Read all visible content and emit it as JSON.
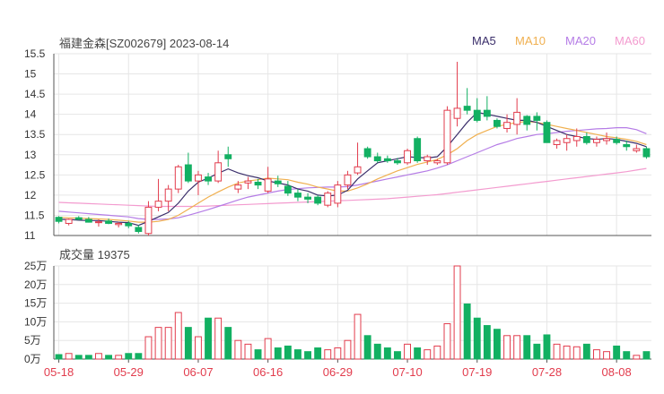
{
  "header": {
    "stock": "福建金森[SZ002679]",
    "date": "2023-08-14"
  },
  "legend": [
    {
      "name": "MA5",
      "color": "#3b2f6b"
    },
    {
      "name": "MA10",
      "color": "#f0b050"
    },
    {
      "name": "MA20",
      "color": "#b57ce6"
    },
    {
      "name": "MA60",
      "color": "#f39bcf"
    }
  ],
  "volume_header": {
    "label": "成交量",
    "value": "19375"
  },
  "colors": {
    "up": "#e23c4d",
    "down": "#12b062",
    "grid": "#e6e6e6",
    "axis": "#555555",
    "date_label": "#e23c4d"
  },
  "chart_data": [
    {
      "type": "candlestick",
      "title": "福建金森[SZ002679] 2023-08-14",
      "ylim": [
        11,
        15.5
      ],
      "y_ticks": [
        "15.5",
        "15",
        "14.5",
        "14",
        "13.5",
        "13",
        "12.5",
        "12",
        "11.5",
        "11"
      ],
      "x_tick_labels": [
        {
          "label": "05-18",
          "index": 0
        },
        {
          "label": "05-29",
          "index": 7
        },
        {
          "label": "06-07",
          "index": 14
        },
        {
          "label": "06-16",
          "index": 21
        },
        {
          "label": "06-29",
          "index": 28
        },
        {
          "label": "07-10",
          "index": 35
        },
        {
          "label": "07-19",
          "index": 42
        },
        {
          "label": "07-28",
          "index": 49
        },
        {
          "label": "08-08",
          "index": 56
        }
      ],
      "ohlc": [
        [
          11.45,
          11.48,
          11.3,
          11.35
        ],
        [
          11.3,
          11.42,
          11.25,
          11.4
        ],
        [
          11.44,
          11.48,
          11.38,
          11.4
        ],
        [
          11.4,
          11.46,
          11.32,
          11.33
        ],
        [
          11.32,
          11.4,
          11.22,
          11.34
        ],
        [
          11.36,
          11.42,
          11.28,
          11.3
        ],
        [
          11.27,
          11.33,
          11.2,
          11.3
        ],
        [
          11.3,
          11.36,
          11.18,
          11.24
        ],
        [
          11.2,
          11.26,
          11.05,
          11.1
        ],
        [
          11.05,
          11.85,
          11.0,
          11.7
        ],
        [
          11.7,
          12.4,
          11.6,
          11.85
        ],
        [
          11.85,
          12.25,
          11.6,
          12.15
        ],
        [
          12.15,
          12.75,
          12.05,
          12.7
        ],
        [
          12.75,
          13.05,
          12.3,
          12.35
        ],
        [
          12.35,
          12.6,
          12.0,
          12.5
        ],
        [
          12.45,
          12.55,
          12.25,
          12.35
        ],
        [
          12.35,
          13.1,
          12.3,
          12.8
        ],
        [
          13.0,
          13.2,
          12.7,
          12.9
        ],
        [
          12.15,
          12.35,
          12.05,
          12.25
        ],
        [
          12.3,
          12.45,
          12.15,
          12.35
        ],
        [
          12.32,
          12.4,
          12.15,
          12.25
        ],
        [
          12.1,
          12.7,
          12.05,
          12.4
        ],
        [
          12.35,
          12.48,
          12.2,
          12.28
        ],
        [
          12.22,
          12.35,
          11.98,
          12.05
        ],
        [
          12.05,
          12.15,
          11.85,
          11.95
        ],
        [
          11.95,
          12.05,
          11.8,
          11.9
        ],
        [
          11.95,
          12.0,
          11.75,
          11.8
        ],
        [
          11.75,
          12.1,
          11.7,
          12.05
        ],
        [
          11.8,
          12.35,
          11.7,
          12.25
        ],
        [
          12.25,
          12.6,
          12.15,
          12.5
        ],
        [
          12.55,
          13.3,
          12.5,
          12.7
        ],
        [
          13.15,
          13.2,
          12.9,
          12.95
        ],
        [
          12.95,
          13.05,
          12.8,
          12.85
        ],
        [
          12.9,
          12.98,
          12.8,
          12.85
        ],
        [
          12.85,
          12.92,
          12.75,
          12.8
        ],
        [
          12.8,
          13.15,
          12.75,
          13.1
        ],
        [
          13.4,
          13.45,
          12.8,
          12.85
        ],
        [
          12.85,
          13.0,
          12.75,
          12.95
        ],
        [
          12.8,
          12.9,
          12.75,
          12.85
        ],
        [
          12.8,
          14.2,
          12.75,
          14.1
        ],
        [
          13.9,
          15.3,
          13.7,
          14.15
        ],
        [
          14.2,
          14.65,
          14.0,
          14.1
        ],
        [
          14.1,
          14.4,
          13.8,
          13.85
        ],
        [
          14.1,
          14.45,
          13.85,
          13.95
        ],
        [
          13.85,
          13.9,
          13.65,
          13.7
        ],
        [
          13.65,
          14.0,
          13.55,
          13.8
        ],
        [
          13.75,
          14.4,
          13.5,
          14.05
        ],
        [
          13.95,
          13.98,
          13.6,
          13.75
        ],
        [
          13.95,
          14.05,
          13.6,
          13.85
        ],
        [
          13.8,
          13.85,
          13.3,
          13.3
        ],
        [
          13.25,
          13.4,
          13.15,
          13.35
        ],
        [
          13.3,
          13.5,
          13.1,
          13.4
        ],
        [
          13.35,
          13.65,
          13.2,
          13.45
        ],
        [
          13.45,
          13.55,
          13.25,
          13.3
        ],
        [
          13.3,
          13.45,
          13.2,
          13.38
        ],
        [
          13.35,
          13.55,
          13.25,
          13.4
        ],
        [
          13.38,
          13.45,
          13.25,
          13.3
        ],
        [
          13.25,
          13.35,
          13.1,
          13.2
        ],
        [
          13.1,
          13.25,
          13.05,
          13.15
        ],
        [
          13.15,
          13.2,
          12.9,
          12.95
        ]
      ],
      "series": [
        {
          "name": "MA5",
          "values": [
            11.4,
            11.4,
            11.38,
            11.37,
            11.37,
            11.35,
            11.33,
            11.32,
            11.25,
            11.35,
            11.46,
            11.57,
            11.8,
            12.1,
            12.32,
            12.42,
            12.54,
            12.65,
            12.55,
            12.48,
            12.43,
            12.35,
            12.3,
            12.25,
            12.15,
            12.1,
            12.0,
            11.98,
            12.0,
            12.12,
            12.4,
            12.6,
            12.8,
            12.85,
            12.9,
            12.95,
            12.93,
            12.92,
            12.95,
            13.2,
            13.5,
            13.8,
            14.05,
            14.0,
            13.95,
            13.9,
            13.85,
            13.85,
            13.8,
            13.7,
            13.6,
            13.5,
            13.45,
            13.4,
            13.38,
            13.4,
            13.38,
            13.33,
            13.28,
            13.2
          ]
        },
        {
          "name": "MA10",
          "values": [
            11.45,
            11.44,
            11.43,
            11.42,
            11.41,
            11.4,
            11.38,
            11.36,
            11.33,
            11.33,
            11.35,
            11.4,
            11.5,
            11.65,
            11.8,
            11.95,
            12.08,
            12.2,
            12.3,
            12.35,
            12.38,
            12.42,
            12.4,
            12.38,
            12.32,
            12.27,
            12.2,
            12.15,
            12.1,
            12.1,
            12.18,
            12.28,
            12.4,
            12.5,
            12.6,
            12.68,
            12.76,
            12.82,
            12.88,
            13.0,
            13.15,
            13.35,
            13.5,
            13.6,
            13.7,
            13.75,
            13.8,
            13.82,
            13.8,
            13.75,
            13.7,
            13.65,
            13.6,
            13.55,
            13.5,
            13.45,
            13.42,
            13.38,
            13.33,
            13.25
          ]
        },
        {
          "name": "MA20",
          "values": [
            11.6,
            11.58,
            11.56,
            11.54,
            11.52,
            11.5,
            11.48,
            11.46,
            11.42,
            11.4,
            11.4,
            11.41,
            11.44,
            11.5,
            11.57,
            11.64,
            11.72,
            11.8,
            11.88,
            11.95,
            12.0,
            12.05,
            12.1,
            12.14,
            12.16,
            12.18,
            12.19,
            12.2,
            12.2,
            12.21,
            12.25,
            12.3,
            12.35,
            12.4,
            12.45,
            12.5,
            12.55,
            12.6,
            12.67,
            12.75,
            12.85,
            12.95,
            13.05,
            13.15,
            13.25,
            13.32,
            13.4,
            13.45,
            13.5,
            13.52,
            13.55,
            13.58,
            13.6,
            13.62,
            13.64,
            13.65,
            13.67,
            13.67,
            13.62,
            13.52
          ]
        },
        {
          "name": "MA60",
          "values": [
            11.82,
            11.81,
            11.8,
            11.79,
            11.78,
            11.77,
            11.76,
            11.75,
            11.74,
            11.73,
            11.72,
            11.72,
            11.72,
            11.72,
            11.72,
            11.73,
            11.74,
            11.75,
            11.76,
            11.77,
            11.78,
            11.79,
            11.8,
            11.81,
            11.82,
            11.83,
            11.84,
            11.85,
            11.86,
            11.87,
            11.88,
            11.89,
            11.9,
            11.91,
            11.93,
            11.95,
            11.97,
            11.99,
            12.01,
            12.04,
            12.07,
            12.1,
            12.13,
            12.16,
            12.19,
            12.22,
            12.25,
            12.28,
            12.31,
            12.34,
            12.37,
            12.4,
            12.43,
            12.46,
            12.49,
            12.52,
            12.55,
            12.58,
            12.62,
            12.66
          ]
        }
      ]
    },
    {
      "type": "bar",
      "title": "成交量 19375",
      "ylabel": "万",
      "ylim": [
        0,
        25
      ],
      "y_ticks": [
        "25万",
        "20万",
        "15万",
        "10万",
        "5万",
        "0万"
      ],
      "values": [
        1.2,
        1.5,
        1.0,
        1.0,
        1.5,
        1.0,
        1.0,
        1.5,
        1.5,
        6.0,
        8.5,
        8.5,
        12.5,
        8.5,
        6.0,
        11.0,
        11.0,
        8.5,
        5.0,
        4.0,
        2.5,
        5.5,
        3.0,
        3.5,
        2.5,
        2.0,
        3.0,
        2.5,
        3.0,
        5.0,
        12.0,
        6.3,
        4.0,
        3.0,
        2.0,
        4.0,
        3.0,
        2.5,
        3.5,
        9.5,
        25.0,
        14.8,
        11.0,
        9.0,
        8.0,
        6.3,
        6.3,
        6.3,
        4.0,
        6.5,
        4.0,
        3.5,
        3.3,
        4.0,
        2.5,
        2.0,
        3.5,
        2.0,
        1.0,
        2.0
      ]
    }
  ]
}
